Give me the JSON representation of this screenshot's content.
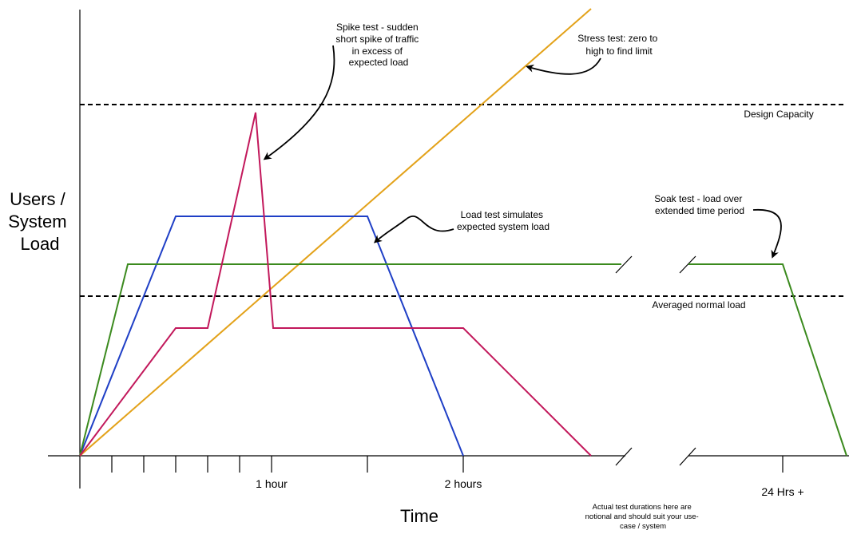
{
  "y_axis_title": [
    "Users /",
    "System",
    "Load"
  ],
  "x_axis_title": "Time",
  "x_tick_labels": {
    "one_hour": "1 hour",
    "two_hours": "2 hours",
    "day": "24 Hrs +"
  },
  "reference_lines": {
    "design_capacity": "Design Capacity",
    "averaged_normal_load": "Averaged normal load"
  },
  "annotations": {
    "spike": [
      "Spike test - sudden",
      "short spike of traffic",
      "in excess of",
      "expected load"
    ],
    "stress": [
      "Stress test: zero to",
      "high to find limit"
    ],
    "load": [
      "Load test simulates",
      "expected system load"
    ],
    "soak": [
      "Soak test - load over",
      "extended time period"
    ],
    "footnote": [
      "Actual test durations here are",
      "notional and should suit your use-",
      "case / system"
    ]
  },
  "colors": {
    "stress": "#e3a21a",
    "spike": "#c2185b",
    "load": "#1f3fc6",
    "soak": "#3b8a1e",
    "axis": "#000000"
  }
}
